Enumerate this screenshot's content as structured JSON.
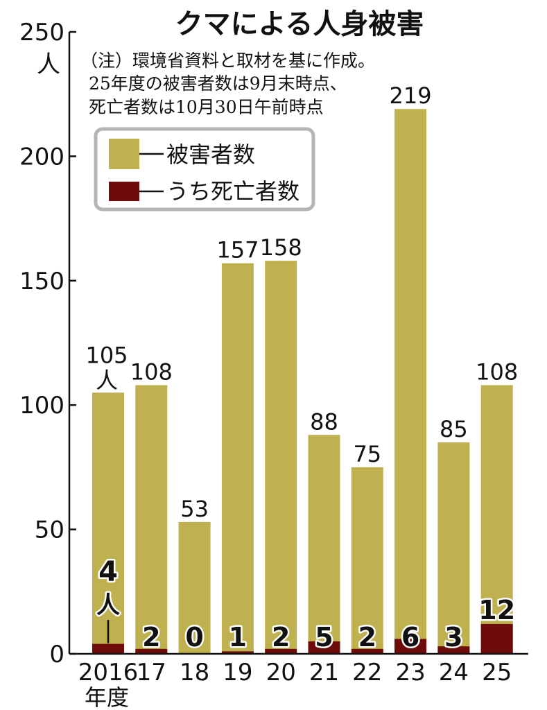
{
  "chart_data": {
    "type": "bar",
    "title": "クマによる人身被害",
    "note": [
      "（注）環境省資料と取材を基に作成。",
      "25年度の被害者数は9月末時点、",
      "死亡者数は10月30日午前時点"
    ],
    "categories": [
      "2016",
      "17",
      "18",
      "19",
      "20",
      "21",
      "22",
      "23",
      "24",
      "25"
    ],
    "xlabel": "年度",
    "ylabel": "人",
    "ylim": [
      0,
      250
    ],
    "yticks": [
      "0",
      "50",
      "100",
      "150",
      "200",
      "250"
    ],
    "legend_position": "top-left",
    "series": [
      {
        "name": "被害者数",
        "values": [
          105,
          108,
          53,
          157,
          158,
          88,
          75,
          219,
          85,
          108
        ],
        "color": "#bfb050"
      },
      {
        "name": "うち死亡者数",
        "values": [
          4,
          2,
          0,
          1,
          2,
          5,
          2,
          6,
          3,
          12
        ],
        "color": "#6e0b0b"
      }
    ],
    "first_total_unit": "人",
    "first_death_unit": "人"
  }
}
